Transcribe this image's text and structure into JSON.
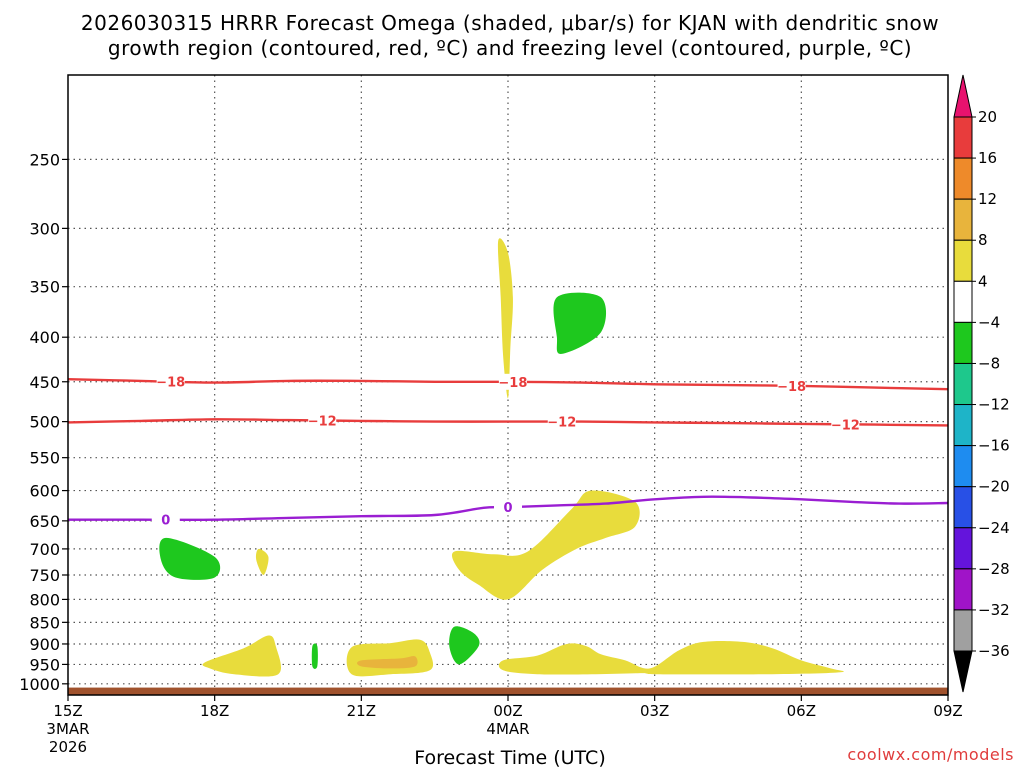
{
  "chart_data": {
    "type": "heatmap",
    "title_line1": "2026030315 HRRR Forecast Omega (shaded, μbar/s) for KJAN with dendritic snow",
    "title_line2": "growth region (contoured, red, ºC) and freezing level (contoured, purple, ºC)",
    "xlabel": "Forecast Time (UTC)",
    "credit": "coolwx.com/models",
    "x_hours_range": [
      0,
      18
    ],
    "x_ticks": [
      {
        "hour": 0,
        "label": "15Z",
        "sub1": "3MAR",
        "sub2": "2026"
      },
      {
        "hour": 3,
        "label": "18Z"
      },
      {
        "hour": 6,
        "label": "21Z"
      },
      {
        "hour": 9,
        "label": "00Z",
        "sub1": "4MAR"
      },
      {
        "hour": 12,
        "label": "03Z"
      },
      {
        "hour": 15,
        "label": "06Z"
      },
      {
        "hour": 18,
        "label": "09Z"
      }
    ],
    "y_pressure_range_hpa": [
      1030,
      200
    ],
    "y_ticks": [
      250,
      300,
      350,
      400,
      450,
      500,
      550,
      600,
      650,
      700,
      750,
      800,
      850,
      900,
      950,
      1000
    ],
    "colorbar": {
      "levels": [
        "20",
        "16",
        "12",
        "8",
        "4",
        "−4",
        "−8",
        "−12",
        "−16",
        "−20",
        "−24",
        "−28",
        "−32",
        "−36"
      ],
      "colors": [
        "#e8126e",
        "#e83c3c",
        "#ee8a2a",
        "#e8b43c",
        "#e8dc3c",
        "#ffffff",
        "#1ec81e",
        "#1ec88c",
        "#1eb4c8",
        "#1e8cf0",
        "#2850e6",
        "#6414dc",
        "#a014c8",
        "#a0a0a0",
        "#000000"
      ]
    },
    "omega_regions": [
      {
        "name": "yellow-spike-350",
        "color": "#e8dc3c",
        "points": [
          [
            8.8,
            310
          ],
          [
            9.0,
            320
          ],
          [
            9.1,
            360
          ],
          [
            9.05,
            410
          ],
          [
            9.0,
            470
          ],
          [
            8.9,
            420
          ],
          [
            8.85,
            360
          ]
        ]
      },
      {
        "name": "green-blob-380",
        "color": "#1ec81e",
        "points": [
          [
            10.0,
            360
          ],
          [
            10.9,
            360
          ],
          [
            10.9,
            395
          ],
          [
            10.1,
            418
          ],
          [
            10.0,
            400
          ]
        ]
      },
      {
        "name": "green-blob-720",
        "color": "#1ec81e",
        "points": [
          [
            2.0,
            680
          ],
          [
            3.0,
            715
          ],
          [
            3.0,
            755
          ],
          [
            2.2,
            755
          ],
          [
            1.9,
            720
          ]
        ]
      },
      {
        "name": "yellow-speck-720",
        "color": "#e8dc3c",
        "points": [
          [
            3.9,
            700
          ],
          [
            4.1,
            715
          ],
          [
            4.0,
            750
          ],
          [
            3.85,
            720
          ]
        ]
      },
      {
        "name": "yellow-blob-700",
        "color": "#e8dc3c",
        "points": [
          [
            7.9,
            705
          ],
          [
            8.7,
            710
          ],
          [
            9.4,
            705
          ],
          [
            10.3,
            630
          ],
          [
            10.7,
            600
          ],
          [
            11.6,
            618
          ],
          [
            11.6,
            660
          ],
          [
            11.0,
            680
          ],
          [
            10.4,
            700
          ],
          [
            9.7,
            740
          ],
          [
            9.0,
            800
          ],
          [
            8.4,
            770
          ],
          [
            8.0,
            740
          ]
        ]
      },
      {
        "name": "yellow-blob-930-a",
        "color": "#e8dc3c",
        "points": [
          [
            2.8,
            945
          ],
          [
            3.6,
            910
          ],
          [
            4.1,
            880
          ],
          [
            4.25,
            905
          ],
          [
            4.3,
            975
          ],
          [
            3.4,
            975
          ],
          [
            2.9,
            960
          ]
        ]
      },
      {
        "name": "green-sliver-930",
        "color": "#1ec81e",
        "points": [
          [
            5.0,
            905
          ],
          [
            5.1,
            905
          ],
          [
            5.1,
            955
          ],
          [
            5.0,
            955
          ]
        ]
      },
      {
        "name": "yellow-blob-930-b",
        "color": "#e8dc3c",
        "points": [
          [
            5.8,
            908
          ],
          [
            6.6,
            898
          ],
          [
            7.2,
            890
          ],
          [
            7.4,
            920
          ],
          [
            7.4,
            965
          ],
          [
            6.6,
            975
          ],
          [
            5.8,
            975
          ]
        ]
      },
      {
        "name": "orange-blob-930",
        "color": "#e8b43c",
        "points": [
          [
            6.0,
            940
          ],
          [
            6.8,
            935
          ],
          [
            7.1,
            930
          ],
          [
            7.1,
            955
          ],
          [
            6.6,
            960
          ],
          [
            6.0,
            955
          ]
        ]
      },
      {
        "name": "green-blob-900",
        "color": "#1ec81e",
        "points": [
          [
            7.9,
            860
          ],
          [
            8.3,
            875
          ],
          [
            8.4,
            905
          ],
          [
            8.0,
            950
          ],
          [
            7.8,
            905
          ]
        ]
      },
      {
        "name": "yellow-blob-940-c",
        "color": "#e8dc3c",
        "points": [
          [
            8.9,
            940
          ],
          [
            9.6,
            928
          ],
          [
            10.2,
            900
          ],
          [
            10.6,
            905
          ],
          [
            10.9,
            925
          ],
          [
            11.4,
            940
          ],
          [
            11.9,
            960
          ],
          [
            12.5,
            915
          ],
          [
            13.0,
            895
          ],
          [
            13.8,
            895
          ],
          [
            14.4,
            910
          ],
          [
            15.0,
            940
          ],
          [
            15.6,
            960
          ],
          [
            15.8,
            970
          ],
          [
            14.4,
            975
          ],
          [
            12.0,
            975
          ],
          [
            11.8,
            972
          ],
          [
            10.8,
            975
          ],
          [
            9.6,
            975
          ],
          [
            8.9,
            965
          ]
        ]
      }
    ],
    "contours": [
      {
        "name": "dgz-minus-18",
        "label": "−18",
        "color": "#e83c3c",
        "points": [
          [
            0,
            447
          ],
          [
            1.5,
            449
          ],
          [
            3,
            451
          ],
          [
            4.5,
            449
          ],
          [
            6,
            449
          ],
          [
            7.5,
            450
          ],
          [
            9,
            450
          ],
          [
            10.5,
            451
          ],
          [
            12,
            453
          ],
          [
            13.5,
            454
          ],
          [
            15,
            455
          ],
          [
            16.5,
            457
          ],
          [
            18,
            459
          ]
        ],
        "label_hours": [
          2.1,
          9.1,
          14.8
        ]
      },
      {
        "name": "dgz-minus-12",
        "label": "−12",
        "color": "#e83c3c",
        "points": [
          [
            0,
            501
          ],
          [
            1.5,
            499
          ],
          [
            3,
            497
          ],
          [
            4.5,
            498
          ],
          [
            6,
            499
          ],
          [
            7.5,
            500
          ],
          [
            9,
            500
          ],
          [
            10.5,
            500
          ],
          [
            12,
            501
          ],
          [
            13.5,
            502
          ],
          [
            15,
            503
          ],
          [
            16.5,
            504
          ],
          [
            18,
            505
          ]
        ],
        "label_hours": [
          5.2,
          10.1,
          15.9
        ]
      },
      {
        "name": "freezing-level-0",
        "label": "0",
        "color": "#9a1ed2",
        "points": [
          [
            0,
            648
          ],
          [
            1.5,
            648
          ],
          [
            3,
            648
          ],
          [
            4.5,
            645
          ],
          [
            6,
            642
          ],
          [
            7.5,
            640
          ],
          [
            8.5,
            628
          ],
          [
            9,
            627
          ],
          [
            10,
            624
          ],
          [
            11,
            621
          ],
          [
            12,
            614
          ],
          [
            13,
            610
          ],
          [
            14,
            611
          ],
          [
            15,
            614
          ],
          [
            16,
            618
          ],
          [
            17,
            621
          ],
          [
            18,
            620
          ]
        ],
        "label_hours": [
          2.0,
          9.0
        ]
      }
    ],
    "ground_band_hpa": [
      1010,
      1030
    ]
  }
}
